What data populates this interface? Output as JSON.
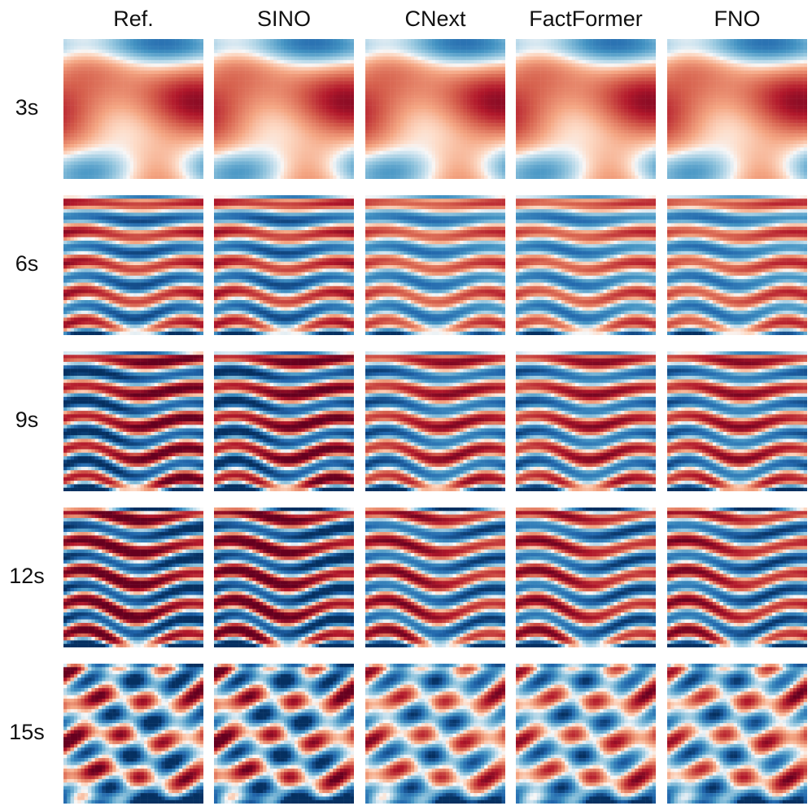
{
  "columns": [
    "Ref.",
    "SINO",
    "CNext",
    "FactFormer",
    "FNO"
  ],
  "rows": [
    "3s",
    "6s",
    "9s",
    "12s",
    "15s"
  ],
  "colormap": {
    "name": "RdBu",
    "positive": "#b2182b",
    "neutral": "#f7f7f7",
    "negative": "#2166ac"
  }
}
